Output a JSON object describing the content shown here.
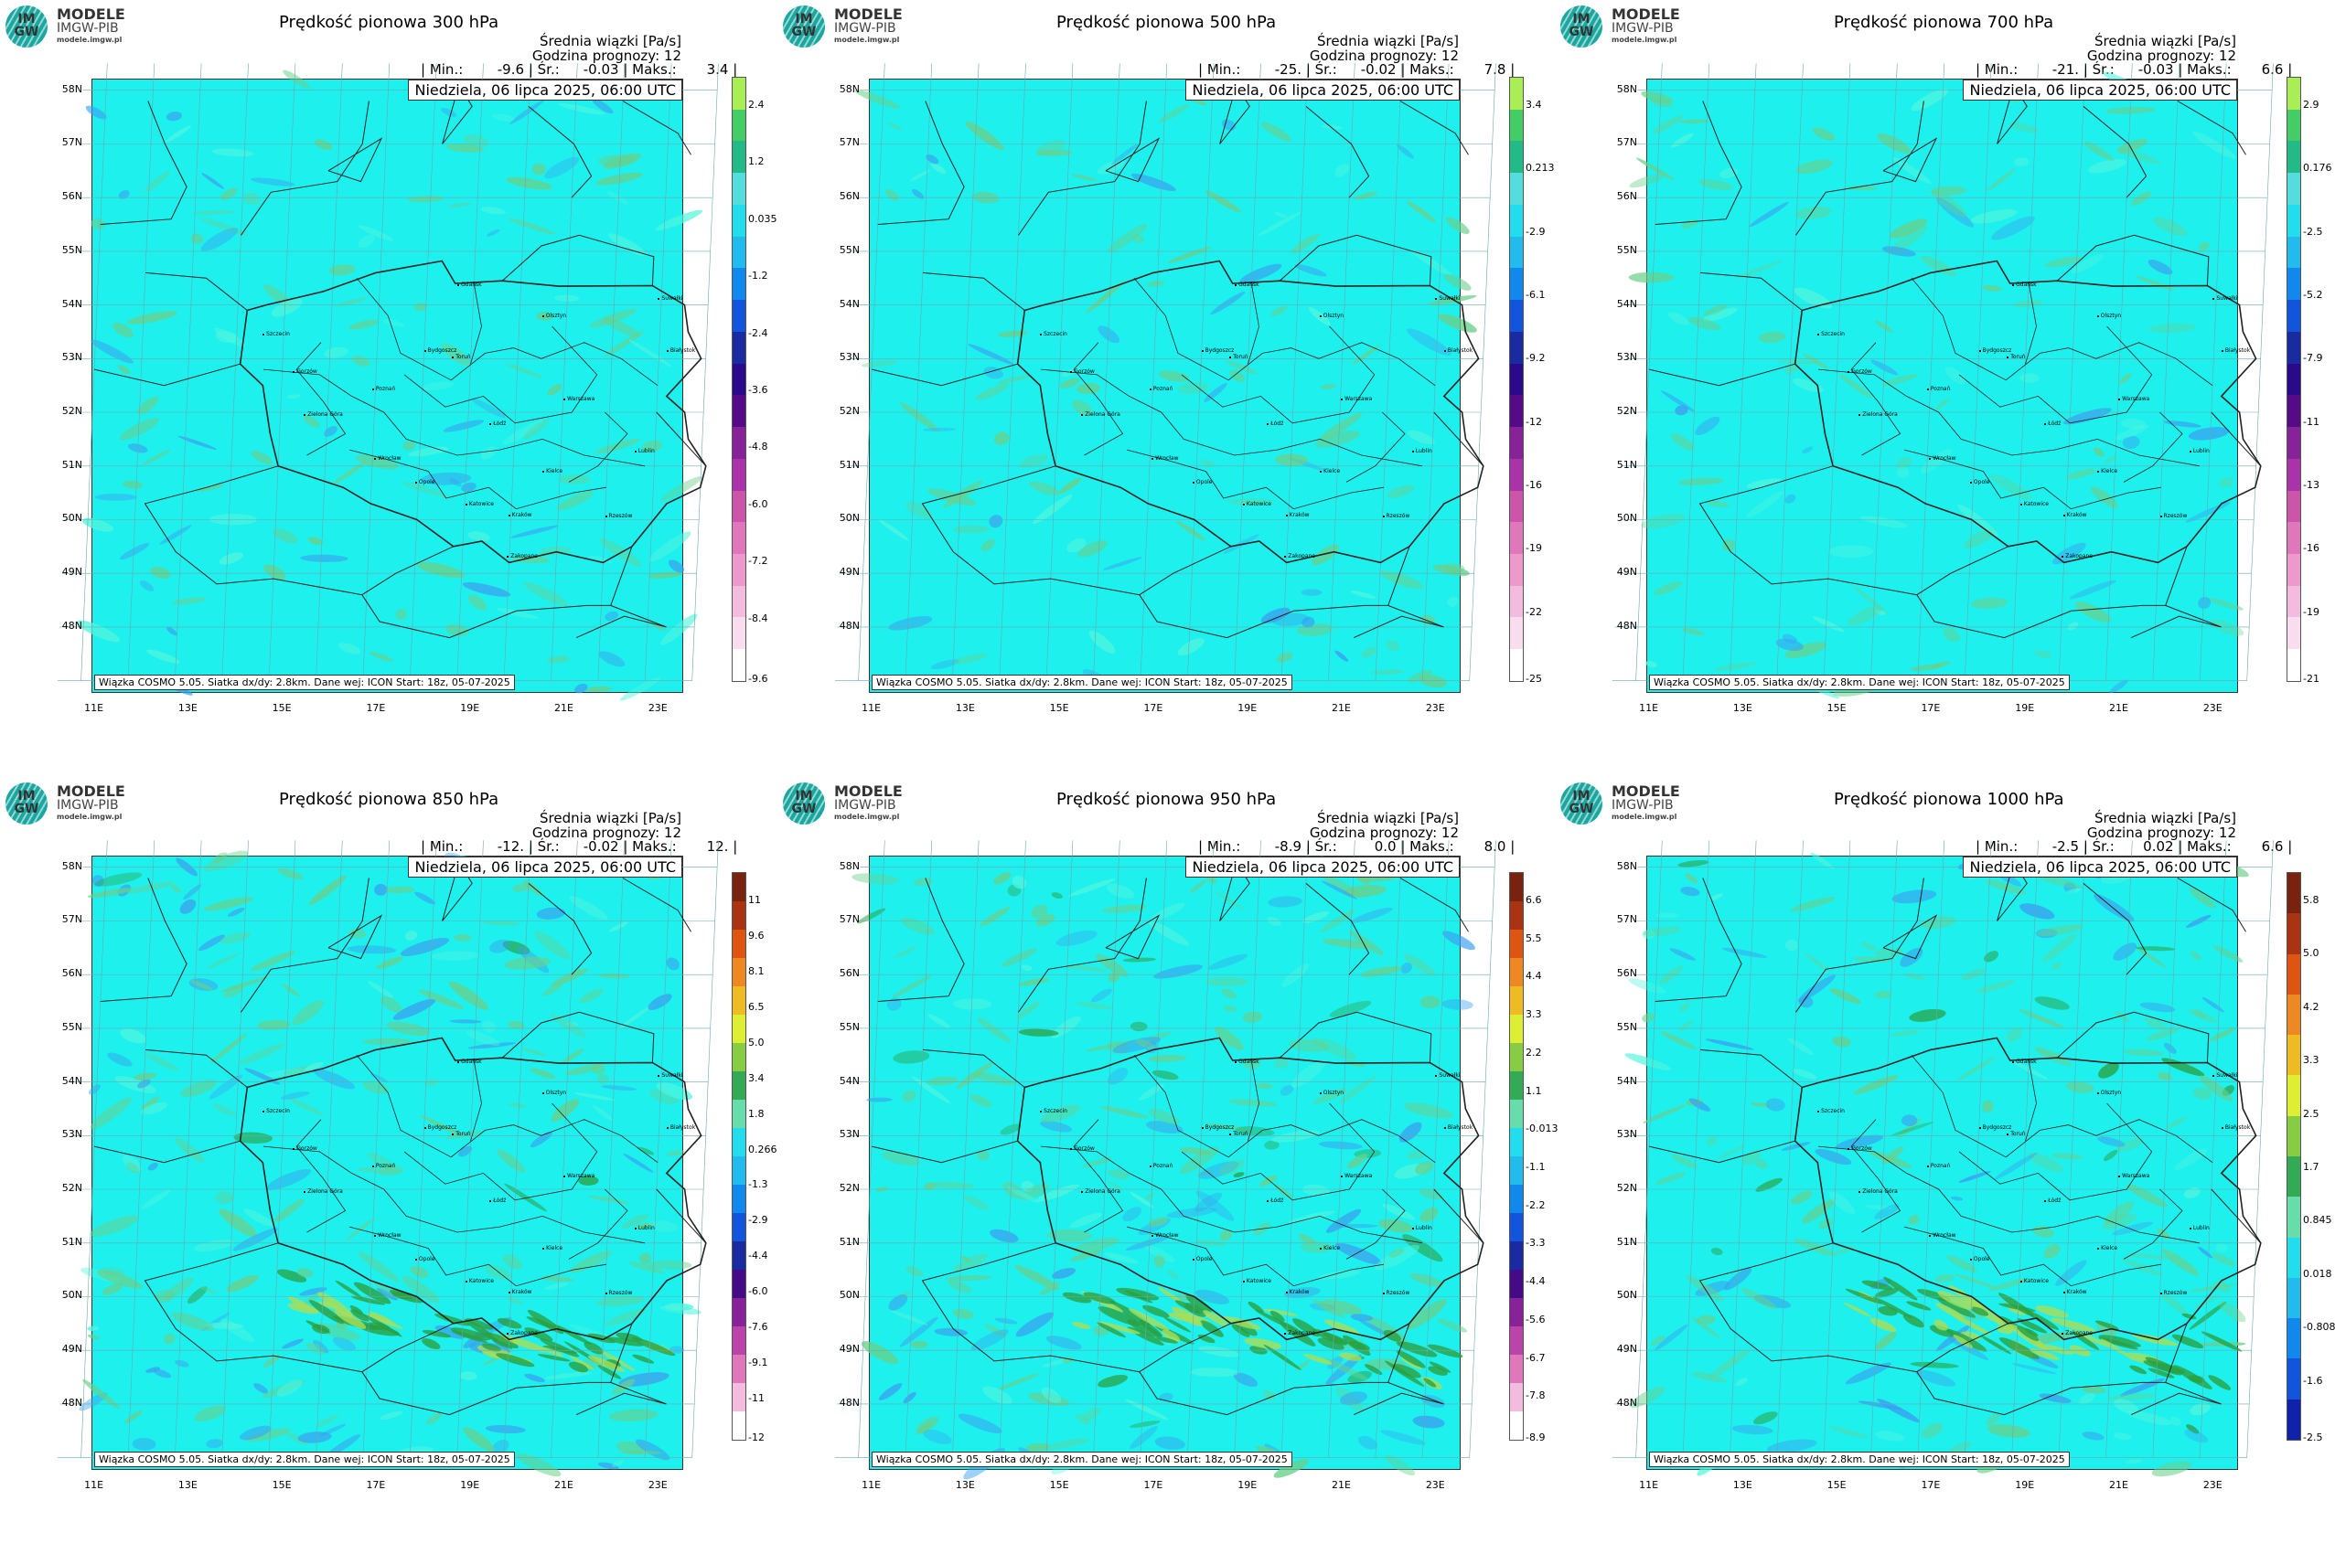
{
  "logo": {
    "letters": "IM GW",
    "line1": "MODELE",
    "line2": "IMGW-PIB",
    "line3": "modele.imgw.pl"
  },
  "common": {
    "subtitle1": "Średnia wiązki [Pa/s]",
    "subtitle2": "Godzina prognozy: 12",
    "date": "Niedziela, 06 lipca 2025, 06:00 UTC",
    "footer": "Wiązka COSMO 5.05. Siatka dx/dy: 2.8km. Dane wej: ICON Start: 18z, 05-07-2025",
    "lat_labels": [
      "58N",
      "57N",
      "56N",
      "55N",
      "54N",
      "53N",
      "52N",
      "51N",
      "50N",
      "49N",
      "48N"
    ],
    "lon_labels": [
      "11E",
      "13E",
      "15E",
      "17E",
      "19E",
      "21E",
      "23E"
    ]
  },
  "cities": [
    {
      "name": "Gdańsk",
      "lon": 18.65,
      "lat": 54.35
    },
    {
      "name": "Olsztyn",
      "lon": 20.48,
      "lat": 53.78
    },
    {
      "name": "Suwałki",
      "lon": 22.93,
      "lat": 54.1
    },
    {
      "name": "Białystok",
      "lon": 23.16,
      "lat": 53.13
    },
    {
      "name": "Szczecin",
      "lon": 14.55,
      "lat": 53.43
    },
    {
      "name": "Bydgoszcz",
      "lon": 18.0,
      "lat": 53.12
    },
    {
      "name": "Toruń",
      "lon": 18.6,
      "lat": 53.01
    },
    {
      "name": "Gorzów",
      "lon": 15.23,
      "lat": 52.73
    },
    {
      "name": "Poznań",
      "lon": 16.93,
      "lat": 52.41
    },
    {
      "name": "Warszawa",
      "lon": 21.01,
      "lat": 52.23
    },
    {
      "name": "Zielona Góra",
      "lon": 15.5,
      "lat": 51.94
    },
    {
      "name": "Łódź",
      "lon": 19.46,
      "lat": 51.76
    },
    {
      "name": "Lublin",
      "lon": 22.57,
      "lat": 51.25
    },
    {
      "name": "Wrocław",
      "lon": 17.04,
      "lat": 51.11
    },
    {
      "name": "Kielce",
      "lon": 20.63,
      "lat": 50.87
    },
    {
      "name": "Opole",
      "lon": 17.93,
      "lat": 50.67
    },
    {
      "name": "Rzeszów",
      "lon": 22.0,
      "lat": 50.04
    },
    {
      "name": "Katowice",
      "lon": 19.02,
      "lat": 50.26
    },
    {
      "name": "Kraków",
      "lon": 19.94,
      "lat": 50.06
    },
    {
      "name": "Zakopane",
      "lon": 19.95,
      "lat": 49.3
    }
  ],
  "panels": [
    {
      "title": "Prędkość pionowa 300 hPa",
      "min": "-9.6",
      "avg": "-0.03",
      "max": "3.4",
      "palette": "cool",
      "ticks": [
        "2.4",
        "1.2",
        "0.035",
        "-1.2",
        "-2.4",
        "-3.6",
        "-4.8",
        "-6.0",
        "-7.2",
        "-8.4",
        "-9.6"
      ]
    },
    {
      "title": "Prędkość pionowa 500 hPa",
      "min": "-25.",
      "avg": "-0.02",
      "max": "7.8",
      "palette": "cool",
      "ticks": [
        "3.4",
        "0.213",
        "-2.9",
        "-6.1",
        "-9.2",
        "-12",
        "-16",
        "-19",
        "-22",
        "-25"
      ]
    },
    {
      "title": "Prędkość pionowa 700 hPa",
      "min": "-21.",
      "avg": "-0.03",
      "max": "6.6",
      "palette": "cool",
      "ticks": [
        "2.9",
        "0.176",
        "-2.5",
        "-5.2",
        "-7.9",
        "-11",
        "-13",
        "-16",
        "-19",
        "-21"
      ]
    },
    {
      "title": "Prędkość pionowa 850 hPa",
      "min": "-12.",
      "avg": "-0.02",
      "max": "12.",
      "palette": "full",
      "ticks": [
        "11",
        "9.6",
        "8.1",
        "6.5",
        "5.0",
        "3.4",
        "1.8",
        "0.266",
        "-1.3",
        "-2.9",
        "-4.4",
        "-6.0",
        "-7.6",
        "-9.1",
        "-11",
        "-12"
      ]
    },
    {
      "title": "Prędkość pionowa 950 hPa",
      "min": "-8.9",
      "avg": "0.0",
      "max": "8.0",
      "palette": "full",
      "ticks": [
        "6.6",
        "5.5",
        "4.4",
        "3.3",
        "2.2",
        "1.1",
        "-0.013",
        "-1.1",
        "-2.2",
        "-3.3",
        "-4.4",
        "-5.6",
        "-6.7",
        "-7.8",
        "-8.9"
      ]
    },
    {
      "title": "Prędkość pionowa 1000 hPa",
      "min": "-2.5",
      "avg": "0.02",
      "max": "6.6",
      "palette": "warm",
      "ticks": [
        "5.8",
        "5.0",
        "4.2",
        "3.3",
        "2.5",
        "1.7",
        "0.845",
        "0.018",
        "-0.808",
        "-1.6",
        "-2.5"
      ]
    }
  ],
  "stat_labels": {
    "min": "| Min.:",
    "avg": "| Śr.:",
    "max": "| Maks.:"
  },
  "colors": {
    "field": "#1ef0ee",
    "green": "#6ad08a",
    "dark_green": "#2aa040",
    "blue": "#3aa0f0",
    "border": "#222222"
  }
}
